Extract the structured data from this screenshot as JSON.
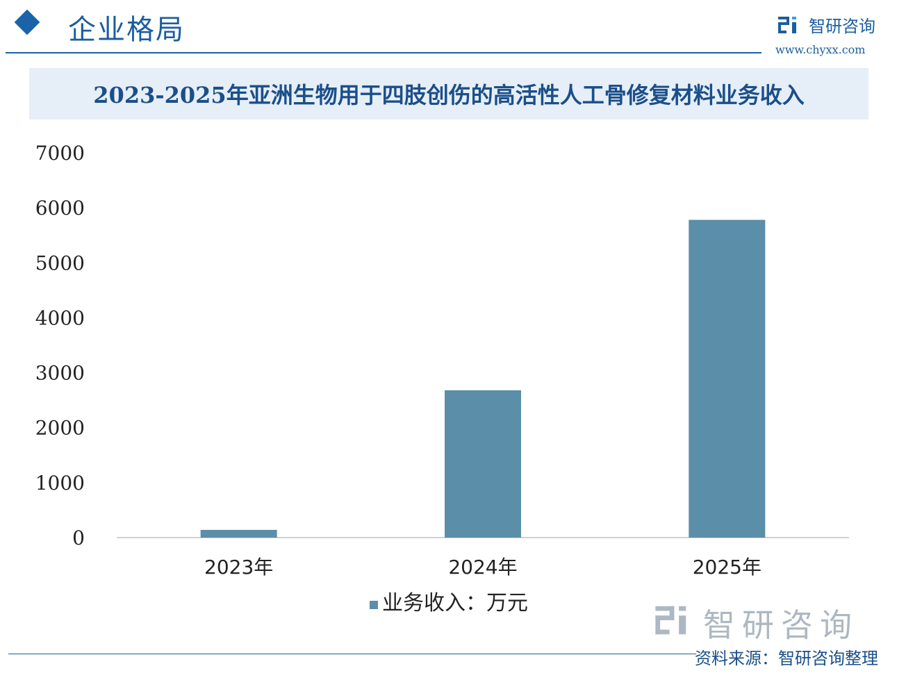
{
  "header": {
    "title": "企业格局",
    "brand_name": "智研咨询",
    "brand_url": "www.chyxx.com"
  },
  "chart_data": {
    "type": "bar",
    "title": "2023-2025年亚洲生物用于四肢创伤的高活性人工骨修复材料业务收入",
    "categories": [
      "2023年",
      "2024年",
      "2025年"
    ],
    "series": [
      {
        "name": "业务收入：万元",
        "values": [
          140,
          2680,
          5780
        ],
        "color": "#5b8ea9"
      }
    ],
    "ylim": [
      0,
      7000
    ],
    "yticks": [
      "0",
      "1000",
      "2000",
      "3000",
      "4000",
      "5000",
      "6000",
      "7000"
    ],
    "grid": false,
    "legend": "bottom"
  },
  "footer": {
    "source": "资料来源：智研咨询整理",
    "logo_name": "智研咨询"
  },
  "colors": {
    "accent": "#1b5e9e",
    "bar": "#5b8ea9",
    "band": "#e6eef7"
  }
}
